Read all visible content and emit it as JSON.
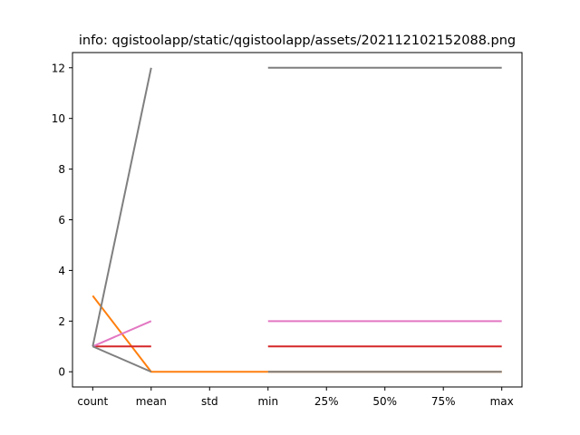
{
  "chart_data": {
    "type": "line",
    "title": "info: qgistoolapp/static/qgistoolapp/assets/202112102152088.png",
    "xlabel": "",
    "ylabel": "",
    "categories": [
      "count",
      "mean",
      "std",
      "min",
      "25%",
      "50%",
      "75%",
      "max"
    ],
    "ylim": [
      -0.6,
      12.6
    ],
    "yticks": [
      0,
      2,
      4,
      6,
      8,
      10,
      12
    ],
    "grid": false,
    "legend": "none",
    "series": [
      {
        "color": "#ff7f0e",
        "values": [
          3,
          0,
          0,
          0,
          null,
          null,
          null,
          null
        ]
      },
      {
        "color": "#ff7f0e",
        "values": [
          null,
          null,
          null,
          0,
          0,
          0,
          0,
          0
        ]
      },
      {
        "color": "#d62728",
        "values": [
          1,
          1,
          null,
          1,
          1,
          1,
          1,
          1
        ]
      },
      {
        "color": "#e377c2",
        "values": [
          1,
          2,
          null,
          2,
          2,
          2,
          2,
          2
        ]
      },
      {
        "color": "#7f7f7f",
        "values": [
          1,
          12,
          null,
          12,
          12,
          12,
          12,
          12
        ]
      },
      {
        "color": "#7f7f7f",
        "values": [
          1,
          0,
          null,
          0,
          0,
          0,
          0,
          0
        ]
      }
    ]
  }
}
